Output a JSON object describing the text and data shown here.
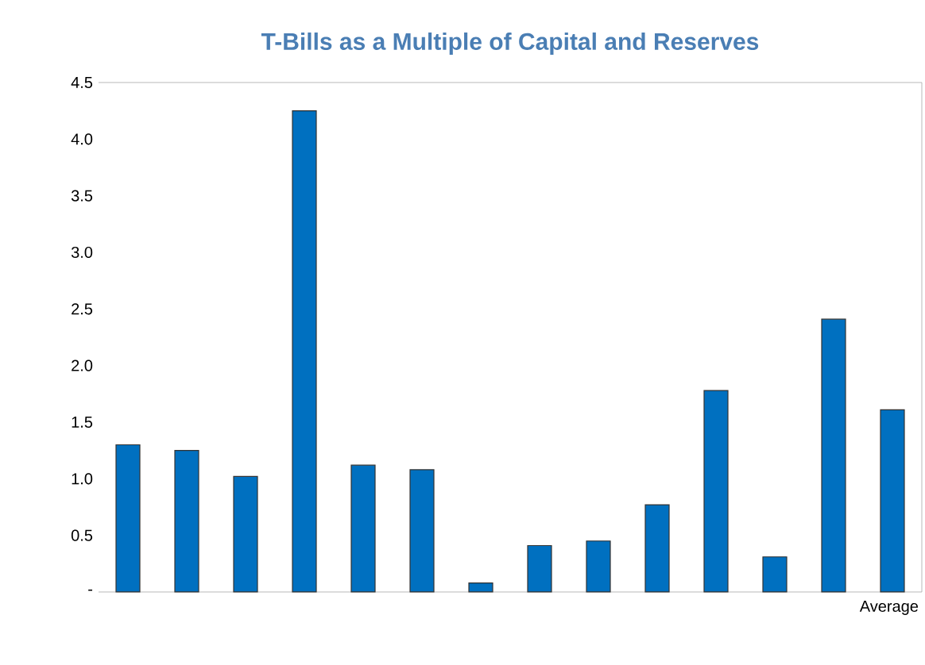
{
  "chart_data": {
    "type": "bar",
    "title": "T-Bills as a Multiple of Capital and Reserves",
    "categories": [
      null,
      null,
      null,
      null,
      null,
      null,
      null,
      null,
      null,
      null,
      null,
      null,
      null,
      "Average"
    ],
    "values": [
      1.3,
      1.25,
      1.02,
      4.25,
      1.12,
      1.08,
      0.08,
      0.41,
      0.45,
      0.77,
      1.78,
      0.31,
      2.41,
      1.61
    ],
    "color": "#0070c0",
    "ylim": [
      0,
      4.5
    ],
    "yticks": [
      {
        "value": 0,
        "label": "-"
      },
      0.5,
      {
        "value": 1,
        "label": "1.0"
      },
      1.5,
      {
        "value": 2,
        "label": "2.0"
      },
      2.5,
      {
        "value": 3,
        "label": "3.0"
      },
      3.5,
      {
        "value": 4,
        "label": "4.0"
      },
      4.5
    ],
    "grid": false
  }
}
